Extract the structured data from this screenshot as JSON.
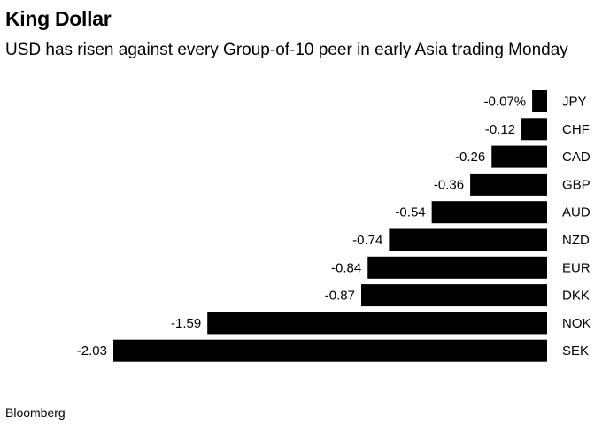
{
  "title": "King Dollar",
  "subtitle": "USD has risen against every Group-of-10 peer in early Asia trading Monday",
  "source": "Bloomberg",
  "chart_data": {
    "type": "bar",
    "orientation": "horizontal",
    "categories": [
      "JPY",
      "CHF",
      "CAD",
      "GBP",
      "AUD",
      "NZD",
      "EUR",
      "DKK",
      "NOK",
      "SEK"
    ],
    "values": [
      -0.07,
      -0.12,
      -0.26,
      -0.36,
      -0.54,
      -0.74,
      -0.84,
      -0.87,
      -1.59,
      -2.03
    ],
    "value_labels": [
      "-0.07%",
      "-0.12",
      "-0.26",
      "-0.36",
      "-0.54",
      "-0.74",
      "-0.84",
      "-0.87",
      "-1.59",
      "-2.03"
    ],
    "bar_color": "#000000",
    "grid": false,
    "xlim": [
      -2.03,
      0
    ]
  }
}
